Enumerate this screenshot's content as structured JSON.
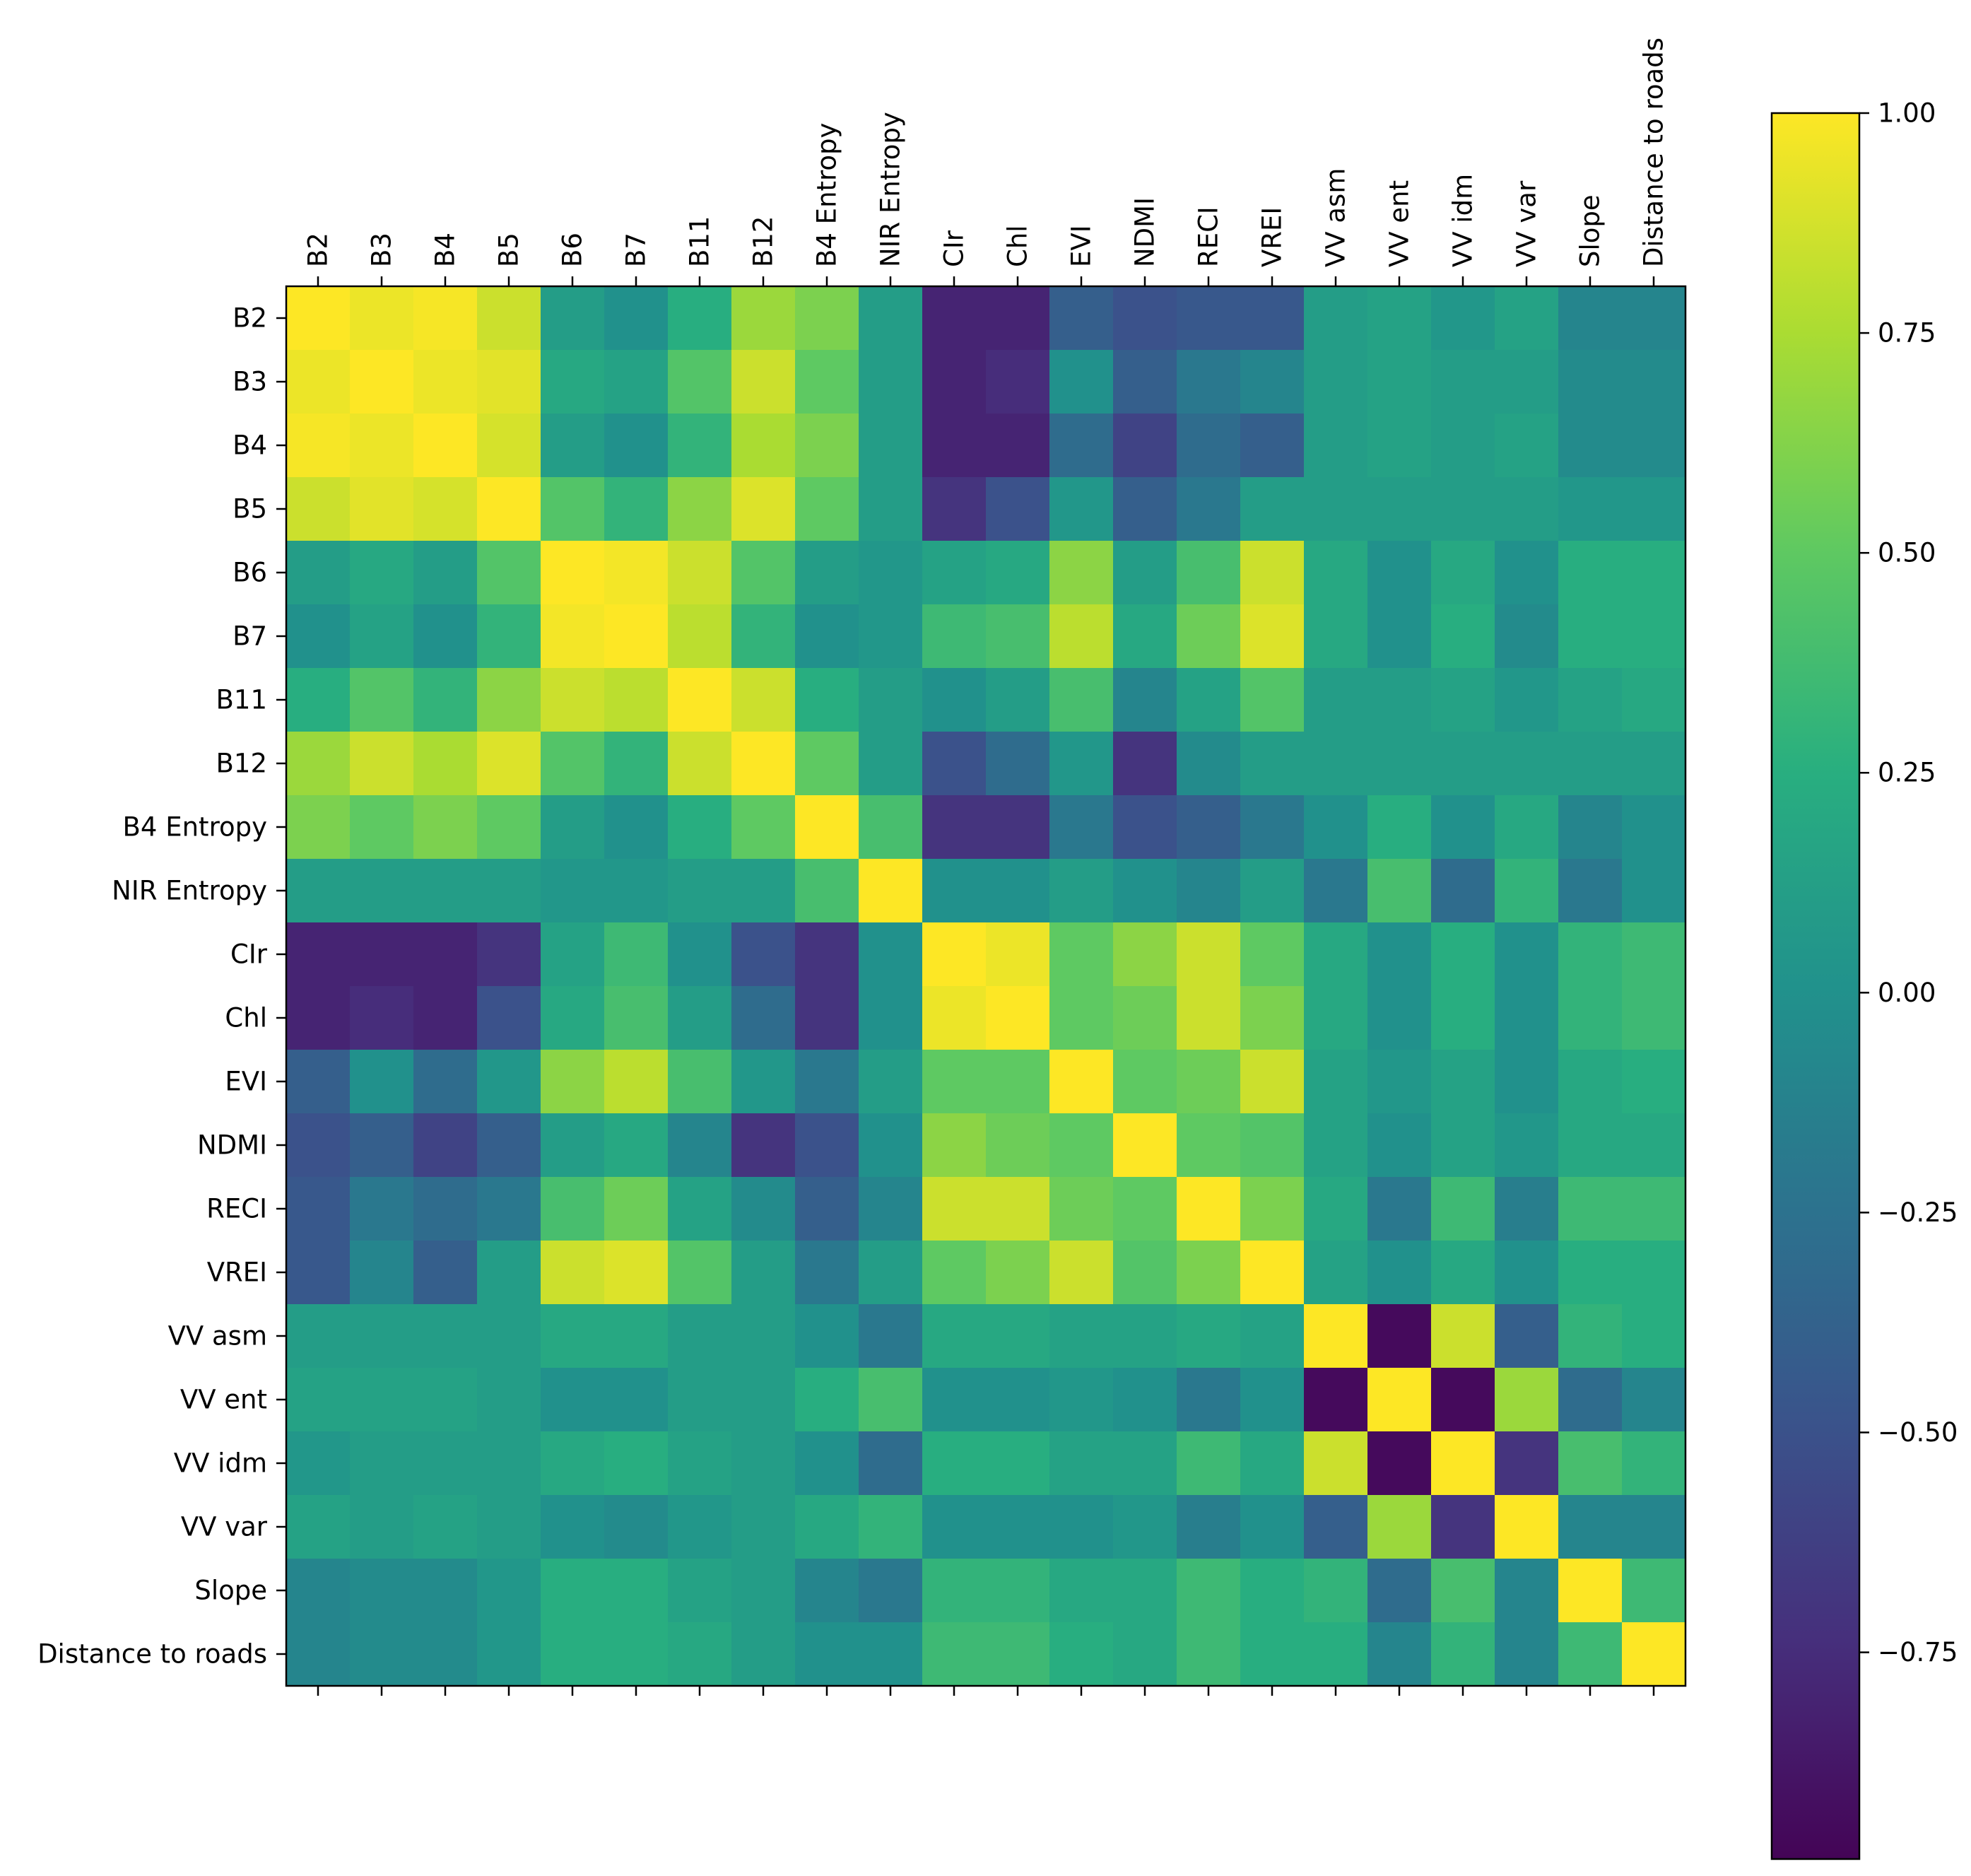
{
  "chart_data": {
    "type": "heatmap",
    "title": "",
    "colormap": "viridis",
    "labels": [
      "B2",
      "B3",
      "B4",
      "B5",
      "B6",
      "B7",
      "B11",
      "B12",
      "B4 Entropy",
      "NIR Entropy",
      "CIr",
      "Chl",
      "EVI",
      "NDMI",
      "RECI",
      "VREI",
      "VV asm",
      "VV ent",
      "VV idm",
      "VV var",
      "Slope",
      "Distance to roads"
    ],
    "vmin": -1.0,
    "vmax": 1.0,
    "colorbar_ticks": [
      1.0,
      0.75,
      0.5,
      0.25,
      0.0,
      -0.25,
      -0.5,
      -0.75
    ],
    "colorbar_tick_labels": [
      "1.00",
      "0.75",
      "0.50",
      "0.25",
      "0.00",
      "−0.25",
      "−0.50",
      "−0.75"
    ],
    "matrix": [
      [
        1.0,
        0.95,
        0.98,
        0.85,
        0.1,
        0.0,
        0.25,
        0.7,
        0.6,
        0.1,
        -0.8,
        -0.8,
        -0.4,
        -0.5,
        -0.45,
        -0.45,
        0.1,
        0.15,
        0.05,
        0.15,
        -0.1,
        -0.1
      ],
      [
        0.95,
        1.0,
        0.95,
        0.92,
        0.2,
        0.15,
        0.45,
        0.85,
        0.5,
        0.1,
        -0.8,
        -0.75,
        0.0,
        -0.4,
        -0.2,
        -0.1,
        0.1,
        0.15,
        0.1,
        0.1,
        -0.05,
        -0.05
      ],
      [
        0.98,
        0.95,
        1.0,
        0.88,
        0.1,
        0.0,
        0.3,
        0.75,
        0.6,
        0.1,
        -0.8,
        -0.8,
        -0.3,
        -0.6,
        -0.3,
        -0.4,
        0.1,
        0.15,
        0.1,
        0.15,
        -0.05,
        -0.05
      ],
      [
        0.85,
        0.92,
        0.88,
        1.0,
        0.45,
        0.3,
        0.65,
        0.9,
        0.5,
        0.1,
        -0.7,
        -0.5,
        0.05,
        -0.4,
        -0.2,
        0.1,
        0.1,
        0.1,
        0.1,
        0.1,
        0.05,
        0.05
      ],
      [
        0.1,
        0.2,
        0.1,
        0.45,
        1.0,
        0.97,
        0.85,
        0.45,
        0.1,
        0.05,
        0.15,
        0.2,
        0.65,
        0.1,
        0.4,
        0.85,
        0.2,
        0.0,
        0.2,
        0.0,
        0.25,
        0.25
      ],
      [
        0.0,
        0.15,
        0.0,
        0.3,
        0.97,
        1.0,
        0.8,
        0.3,
        0.0,
        0.05,
        0.35,
        0.4,
        0.8,
        0.2,
        0.55,
        0.9,
        0.2,
        0.0,
        0.25,
        -0.05,
        0.25,
        0.25
      ],
      [
        0.25,
        0.45,
        0.3,
        0.65,
        0.85,
        0.8,
        1.0,
        0.85,
        0.25,
        0.1,
        0.0,
        0.1,
        0.4,
        -0.1,
        0.15,
        0.45,
        0.1,
        0.1,
        0.15,
        0.05,
        0.15,
        0.2
      ],
      [
        0.7,
        0.85,
        0.75,
        0.9,
        0.45,
        0.3,
        0.85,
        1.0,
        0.5,
        0.1,
        -0.5,
        -0.3,
        0.05,
        -0.7,
        -0.05,
        0.1,
        0.1,
        0.1,
        0.1,
        0.1,
        0.1,
        0.1
      ],
      [
        0.6,
        0.5,
        0.6,
        0.5,
        0.1,
        0.0,
        0.25,
        0.5,
        1.0,
        0.4,
        -0.7,
        -0.7,
        -0.2,
        -0.5,
        -0.4,
        -0.2,
        0.0,
        0.25,
        0.0,
        0.2,
        -0.1,
        0.0
      ],
      [
        0.1,
        0.1,
        0.1,
        0.1,
        0.05,
        0.05,
        0.1,
        0.1,
        0.4,
        1.0,
        0.0,
        0.0,
        0.1,
        0.0,
        -0.1,
        0.1,
        -0.2,
        0.4,
        -0.3,
        0.3,
        -0.2,
        0.0
      ],
      [
        -0.8,
        -0.8,
        -0.8,
        -0.7,
        0.15,
        0.35,
        0.0,
        -0.5,
        -0.7,
        0.0,
        1.0,
        0.95,
        0.5,
        0.65,
        0.85,
        0.5,
        0.2,
        0.0,
        0.25,
        0.0,
        0.3,
        0.35
      ],
      [
        -0.8,
        -0.75,
        -0.8,
        -0.5,
        0.2,
        0.4,
        0.1,
        -0.3,
        -0.7,
        0.0,
        0.95,
        1.0,
        0.5,
        0.55,
        0.85,
        0.6,
        0.2,
        0.0,
        0.25,
        0.0,
        0.3,
        0.35
      ],
      [
        -0.4,
        0.0,
        -0.3,
        0.05,
        0.65,
        0.8,
        0.4,
        0.05,
        -0.2,
        0.1,
        0.5,
        0.5,
        1.0,
        0.5,
        0.55,
        0.85,
        0.15,
        0.05,
        0.15,
        0.0,
        0.2,
        0.25
      ],
      [
        -0.5,
        -0.4,
        -0.6,
        -0.4,
        0.1,
        0.2,
        -0.1,
        -0.7,
        -0.5,
        0.0,
        0.65,
        0.55,
        0.5,
        1.0,
        0.5,
        0.45,
        0.15,
        0.0,
        0.15,
        0.05,
        0.2,
        0.2
      ],
      [
        -0.45,
        -0.2,
        -0.3,
        -0.2,
        0.4,
        0.55,
        0.15,
        -0.05,
        -0.4,
        -0.1,
        0.85,
        0.85,
        0.55,
        0.5,
        1.0,
        0.6,
        0.2,
        -0.2,
        0.35,
        -0.15,
        0.35,
        0.35
      ],
      [
        -0.45,
        -0.1,
        -0.4,
        0.1,
        0.85,
        0.9,
        0.45,
        0.1,
        -0.2,
        0.1,
        0.5,
        0.6,
        0.85,
        0.45,
        0.6,
        1.0,
        0.15,
        0.0,
        0.2,
        0.0,
        0.25,
        0.25
      ],
      [
        0.1,
        0.1,
        0.1,
        0.1,
        0.2,
        0.2,
        0.1,
        0.1,
        0.0,
        -0.2,
        0.2,
        0.2,
        0.15,
        0.15,
        0.2,
        0.15,
        1.0,
        -0.95,
        0.85,
        -0.4,
        0.3,
        0.25
      ],
      [
        0.15,
        0.15,
        0.15,
        0.1,
        0.0,
        0.0,
        0.1,
        0.1,
        0.25,
        0.4,
        0.0,
        0.0,
        0.05,
        0.0,
        -0.2,
        0.0,
        -0.95,
        1.0,
        -0.95,
        0.7,
        -0.3,
        -0.1
      ],
      [
        0.05,
        0.1,
        0.1,
        0.1,
        0.2,
        0.25,
        0.15,
        0.1,
        0.0,
        -0.3,
        0.25,
        0.25,
        0.15,
        0.15,
        0.35,
        0.2,
        0.85,
        -0.95,
        1.0,
        -0.7,
        0.4,
        0.3
      ],
      [
        0.15,
        0.1,
        0.15,
        0.1,
        0.0,
        -0.05,
        0.05,
        0.1,
        0.2,
        0.3,
        0.0,
        0.0,
        0.0,
        0.05,
        -0.15,
        0.0,
        -0.4,
        0.7,
        -0.7,
        1.0,
        -0.1,
        -0.1
      ],
      [
        -0.1,
        -0.05,
        -0.05,
        0.05,
        0.25,
        0.25,
        0.15,
        0.1,
        -0.1,
        -0.2,
        0.3,
        0.3,
        0.2,
        0.2,
        0.35,
        0.25,
        0.3,
        -0.3,
        0.4,
        -0.1,
        1.0,
        0.35
      ],
      [
        -0.1,
        -0.05,
        -0.05,
        0.05,
        0.25,
        0.25,
        0.2,
        0.1,
        0.0,
        0.0,
        0.35,
        0.35,
        0.25,
        0.2,
        0.35,
        0.25,
        0.25,
        -0.1,
        0.3,
        -0.1,
        0.35,
        1.0
      ]
    ]
  }
}
